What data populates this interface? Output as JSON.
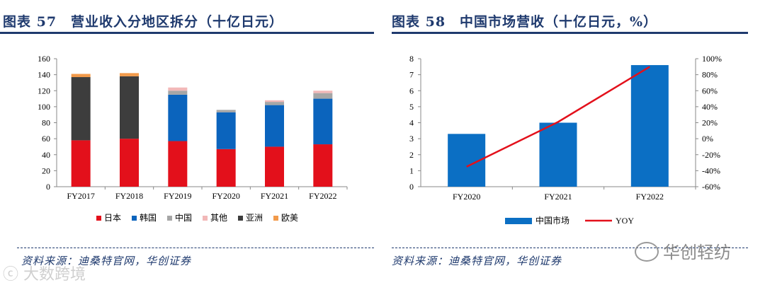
{
  "left": {
    "title": "图表 57　营业收入分地区拆分（十亿日元）",
    "source": "资料来源：迪桑特官网，华创证券"
  },
  "right": {
    "title": "图表 58　中国市场营收（十亿日元，%）",
    "source": "资料来源：迪桑特官网，华创证券"
  },
  "watermarks": {
    "right": "华创轻纺",
    "left": "大数跨境"
  },
  "chart_data": [
    {
      "type": "bar",
      "stacked": true,
      "title": "营业收入分地区拆分（十亿日元）",
      "categories": [
        "FY2017",
        "FY2018",
        "FY2019",
        "FY2020",
        "FY2021",
        "FY2022"
      ],
      "y_ticks": [
        "0",
        "20",
        "40",
        "60",
        "80",
        "100",
        "120",
        "140",
        "160"
      ],
      "ylim": [
        0,
        160
      ],
      "legend_position": "bottom",
      "series": [
        {
          "name": "日本",
          "color": "#e3101b",
          "values": [
            58,
            60,
            57,
            47,
            50,
            53
          ]
        },
        {
          "name": "韩国",
          "color": "#0b64bd",
          "values": [
            0,
            0,
            58,
            46,
            52,
            57
          ]
        },
        {
          "name": "中国",
          "color": "#a6a6a6",
          "values": [
            0,
            0,
            5,
            3,
            4,
            7
          ]
        },
        {
          "name": "其他",
          "color": "#f2b8b8",
          "values": [
            0,
            0,
            4,
            0,
            2,
            3
          ]
        },
        {
          "name": "亚洲",
          "color": "#3d3d3d",
          "values": [
            79,
            78,
            0,
            0,
            0,
            0
          ]
        },
        {
          "name": "欧美",
          "color": "#f29a4a",
          "values": [
            4,
            4,
            0,
            0,
            0,
            0
          ]
        }
      ]
    },
    {
      "type": "bar+line",
      "title": "中国市场营收（十亿日元，%）",
      "categories": [
        "FY2020",
        "FY2021",
        "FY2022"
      ],
      "y_ticks": [
        "0",
        "1",
        "2",
        "3",
        "4",
        "5",
        "6",
        "7",
        "8"
      ],
      "ylim": [
        0,
        8
      ],
      "y2_ticks": [
        "-60%",
        "-40%",
        "-20%",
        "0%",
        "20%",
        "40%",
        "60%",
        "80%",
        "100%"
      ],
      "y2lim": [
        -60,
        100
      ],
      "legend_position": "bottom",
      "bar_series": {
        "name": "中国市场",
        "color": "#0b6fc4",
        "values": [
          3.3,
          4.0,
          7.6
        ]
      },
      "line_series": {
        "name": "YOY",
        "color": "#e3101b",
        "values": [
          -35,
          21,
          90
        ]
      }
    }
  ]
}
